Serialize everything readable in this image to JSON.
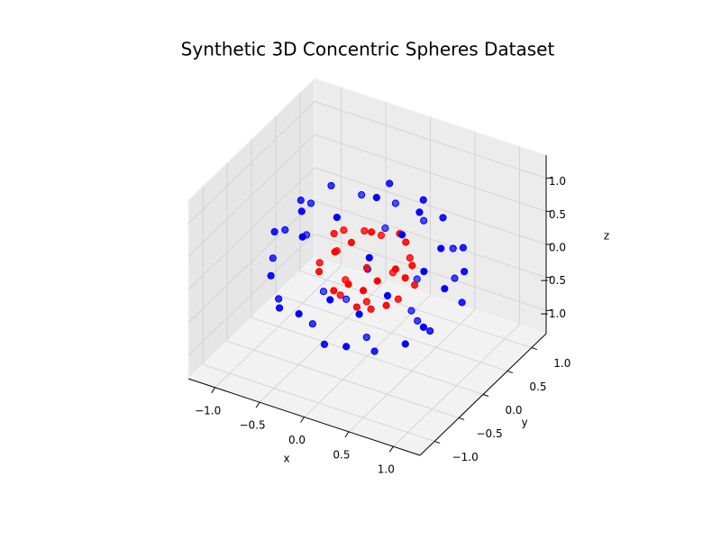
{
  "chart_data": {
    "type": "scatter3d",
    "title": "Synthetic 3D Concentric Spheres Dataset",
    "xlabel": "x",
    "ylabel": "y",
    "zlabel": "z",
    "xlim": [
      -1.3,
      1.3
    ],
    "ylim": [
      -1.3,
      1.3
    ],
    "zlim": [
      -1.35,
      1.35
    ],
    "xticks": [
      {
        "value": -1.0,
        "label": "−1.0"
      },
      {
        "value": -0.5,
        "label": "−0.5"
      },
      {
        "value": 0.0,
        "label": "0.0"
      },
      {
        "value": 0.5,
        "label": "0.5"
      },
      {
        "value": 1.0,
        "label": "1.0"
      }
    ],
    "yticks": [
      {
        "value": -1.0,
        "label": "−1.0"
      },
      {
        "value": -0.5,
        "label": "−0.5"
      },
      {
        "value": 0.0,
        "label": "0.0"
      },
      {
        "value": 0.5,
        "label": "0.5"
      },
      {
        "value": 1.0,
        "label": "1.0"
      }
    ],
    "zticks": [
      {
        "value": -1.0,
        "label": "−1.0"
      },
      {
        "value": -0.5,
        "label": "−0.5"
      },
      {
        "value": 0.0,
        "label": "0.0"
      },
      {
        "value": 0.5,
        "label": "0.5"
      },
      {
        "value": 1.0,
        "label": "1.0"
      }
    ],
    "grid": true,
    "series": [
      {
        "color": "#0000ff",
        "x": [
          0.92,
          -0.85,
          0.1,
          0.33,
          -0.4,
          0.7,
          -0.6,
          0.05,
          0.02,
          0.5,
          -0.95,
          0.65,
          -0.2,
          0.8,
          -0.7,
          0.3,
          -0.35,
          0.55,
          -0.8,
          0.2,
          0.9,
          -0.15,
          -0.5,
          0.4,
          -0.9,
          0.15,
          0.62,
          -0.45,
          0.95,
          -0.25,
          0.45,
          -0.65,
          0.25,
          -0.75,
          0.75,
          -0.05,
          0.5,
          -0.85,
          0.85,
          -0.3,
          0.35,
          -0.55,
          0.6,
          -0.95,
          0.1,
          -0.1,
          0.8,
          -0.4,
          0.4,
          -0.6
        ],
        "y": [
          0.31,
          0.4,
          -0.95,
          0.55,
          -0.6,
          -0.5,
          0.2,
          0.1,
          -0.05,
          0.85,
          -0.2,
          0.1,
          0.95,
          -0.3,
          -0.7,
          -0.4,
          0.65,
          0.55,
          0.1,
          -0.8,
          0.3,
          -0.35,
          0.8,
          -0.9,
          0.4,
          0.75,
          -0.72,
          -0.3,
          -0.15,
          -0.95,
          0.25,
          0.45,
          0.45,
          -0.45,
          0.6,
          0.55,
          -0.2,
          -0.35,
          -0.4,
          0.92,
          -0.6,
          -0.8,
          0.7,
          0.05,
          0.98,
          -0.7,
          0.05,
          0.3,
          0.3,
          -0.25
        ],
        "z": [
          0.12,
          0.3,
          0.22,
          0.77,
          0.7,
          -0.5,
          -0.78,
          1.0,
          -1.02,
          -0.1,
          -0.15,
          -0.75,
          0.2,
          0.5,
          0.05,
          -0.86,
          -0.65,
          0.6,
          0.58,
          -0.55,
          -0.35,
          0.93,
          0.3,
          0.1,
          -0.2,
          -0.65,
          0.35,
          -0.85,
          0.2,
          -0.15,
          0.85,
          0.62,
          -0.87,
          -0.5,
          0.2,
          0.85,
          0.85,
          0.4,
          -0.25,
          -0.2,
          0.72,
          -0.3,
          -0.4,
          0.1,
          0.05,
          -0.72,
          0.6,
          -0.88,
          -0.85,
          0.75
        ]
      },
      {
        "color": "#ff0000",
        "x": [
          0.45,
          -0.4,
          0.05,
          0.2,
          -0.2,
          0.35,
          -0.3,
          0.02,
          0.01,
          0.25,
          -0.48,
          0.32,
          -0.1,
          0.4,
          -0.35,
          0.15,
          -0.18,
          0.28,
          -0.4,
          0.1,
          0.45,
          -0.08,
          -0.25,
          0.2,
          -0.45,
          0.08,
          0.31,
          -0.22,
          0.47,
          -0.12
        ],
        "y": [
          0.1,
          0.25,
          -0.48,
          0.3,
          -0.3,
          -0.25,
          0.1,
          0.05,
          -0.03,
          0.42,
          -0.1,
          0.05,
          0.47,
          -0.15,
          -0.35,
          -0.2,
          0.32,
          0.28,
          0.05,
          -0.4,
          0.15,
          -0.18,
          0.4,
          -0.45,
          0.2,
          0.38,
          -0.36,
          -0.15,
          -0.08,
          -0.47
        ],
        "z": [
          0.15,
          0.2,
          0.1,
          0.38,
          0.35,
          -0.25,
          -0.4,
          0.5,
          -0.5,
          -0.05,
          -0.08,
          -0.38,
          0.1,
          0.25,
          0.02,
          -0.43,
          -0.32,
          0.3,
          0.29,
          -0.28,
          -0.18,
          0.46,
          0.15,
          0.05,
          -0.1,
          -0.32,
          0.18,
          -0.42,
          0.1,
          -0.08
        ]
      }
    ]
  }
}
